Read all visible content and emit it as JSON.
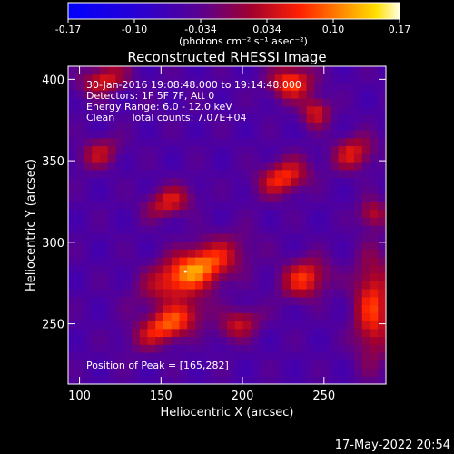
{
  "colorbar": {
    "ticks": [
      "-0.17",
      "-0.10",
      "-0.034",
      "0.034",
      "0.10",
      "0.17"
    ],
    "units": "(photons cm⁻² s⁻¹ asec⁻²)"
  },
  "image": {
    "title": "Reconstructed RHESSI Image",
    "time_range": "30-Jan-2016 19:08:48.000 to 19:14:48.000",
    "detectors": "Detectors: 1F 5F 7F, Att 0",
    "energy": "Energy Range: 6.0 - 12.0 keV",
    "clean": "Clean     Total counts: 7.07E+04",
    "peak": "Position of Peak = [165,282]"
  },
  "chart_data": {
    "type": "heatmap",
    "title": "Reconstructed RHESSI Image",
    "xlabel": "Heliocentric X (arcsec)",
    "ylabel": "Heliocentric Y (arcsec)",
    "xlim": [
      93,
      288
    ],
    "ylim": [
      213,
      408
    ],
    "xticks": [
      100,
      150,
      200,
      250
    ],
    "yticks": [
      250,
      300,
      350,
      400
    ],
    "zlim": [
      -0.17,
      0.17
    ],
    "peak": [
      165,
      282
    ],
    "blobs": [
      {
        "x": 170,
        "y": 283,
        "sx": 20,
        "sy": 9,
        "angle": -25,
        "amp": 0.17
      },
      {
        "x": 155,
        "y": 250,
        "sx": 15,
        "sy": 7,
        "angle": -25,
        "amp": 0.14
      },
      {
        "x": 198,
        "y": 250,
        "sx": 9,
        "sy": 6,
        "angle": -25,
        "amp": 0.09
      },
      {
        "x": 155,
        "y": 325,
        "sx": 10,
        "sy": 6,
        "angle": -20,
        "amp": 0.1
      },
      {
        "x": 225,
        "y": 340,
        "sx": 11,
        "sy": 7,
        "angle": -20,
        "amp": 0.12
      },
      {
        "x": 238,
        "y": 278,
        "sx": 10,
        "sy": 8,
        "angle": -20,
        "amp": 0.12
      },
      {
        "x": 280,
        "y": 260,
        "sx": 8,
        "sy": 22,
        "angle": 0,
        "amp": 0.12
      },
      {
        "x": 268,
        "y": 355,
        "sx": 9,
        "sy": 7,
        "angle": -20,
        "amp": 0.1
      },
      {
        "x": 112,
        "y": 355,
        "sx": 9,
        "sy": 6,
        "angle": -20,
        "amp": 0.08
      },
      {
        "x": 115,
        "y": 400,
        "sx": 10,
        "sy": 6,
        "angle": -20,
        "amp": 0.1
      },
      {
        "x": 230,
        "y": 398,
        "sx": 9,
        "sy": 7,
        "angle": 0,
        "amp": 0.13
      },
      {
        "x": 245,
        "y": 380,
        "sx": 6,
        "sy": 6,
        "angle": 0,
        "amp": 0.1
      },
      {
        "x": 280,
        "y": 318,
        "sx": 6,
        "sy": 6,
        "angle": 0,
        "amp": 0.08
      }
    ],
    "background": -0.05
  },
  "footer": {
    "timestamp": "17-May-2022 20:54"
  }
}
